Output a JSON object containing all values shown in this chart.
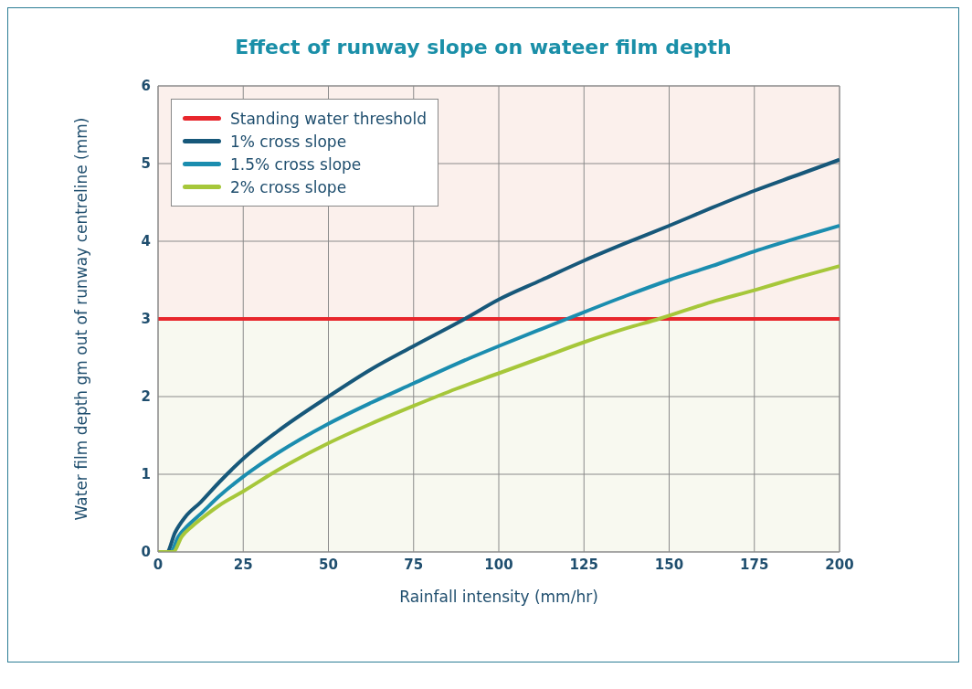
{
  "chart_data": {
    "type": "line",
    "title": "Effect of runway slope on wateer film depth",
    "xlabel": "Rainfall intensity (mm/hr)",
    "ylabel": "Water film depth gm out of runway centreline (mm)",
    "xlim": [
      0,
      200
    ],
    "xticks": [
      0,
      25,
      50,
      75,
      100,
      125,
      150,
      175,
      200
    ],
    "ylim": [
      0,
      6
    ],
    "yticks": [
      0,
      1,
      2,
      3,
      4,
      5,
      6
    ],
    "grid": true,
    "legend": "top left",
    "marker": "none",
    "line_style": "solid",
    "ref_lines": [
      {
        "axis": "y",
        "value": 3,
        "label": "Standing water threshold",
        "color": "#e8262c"
      }
    ],
    "bands": [
      {
        "axis": "y",
        "from": 3,
        "to": 6,
        "color": "#fbf0ec"
      },
      {
        "axis": "y",
        "from": 0,
        "to": 3,
        "color": "#f8f9f0"
      }
    ],
    "series": [
      {
        "name": "1% cross slope",
        "color": "#17587a",
        "x": [
          0,
          2.6,
          5,
          8,
          12.5,
          18,
          25,
          35,
          50,
          62.5,
          75,
          90,
          100,
          112.5,
          125,
          137.5,
          150,
          162.5,
          175,
          187.5,
          200
        ],
        "values": [
          0,
          0,
          0.25,
          0.45,
          0.64,
          0.9,
          1.2,
          1.55,
          2.0,
          2.35,
          2.65,
          3.0,
          3.25,
          3.5,
          3.75,
          3.98,
          4.2,
          4.43,
          4.65,
          4.85,
          5.05
        ]
      },
      {
        "name": "1.5% cross slope",
        "color": "#1b8daf",
        "x": [
          0,
          3.6,
          6,
          9,
          12.5,
          18,
          25,
          35,
          50,
          62.5,
          75,
          87.5,
          100,
          112.5,
          120,
          137.5,
          150,
          162.5,
          175,
          187.5,
          200
        ],
        "values": [
          0,
          0,
          0.2,
          0.35,
          0.49,
          0.72,
          0.97,
          1.27,
          1.65,
          1.92,
          2.17,
          2.42,
          2.65,
          2.87,
          3.0,
          3.3,
          3.5,
          3.68,
          3.87,
          4.04,
          4.2
        ]
      },
      {
        "name": "2% cross slope",
        "color": "#a6c73a",
        "x": [
          0,
          4.4,
          7,
          10,
          12.5,
          18,
          25,
          35,
          50,
          62.5,
          75,
          87.5,
          100,
          112.5,
          125,
          137.5,
          147,
          162.5,
          175,
          187.5,
          200
        ],
        "values": [
          0,
          0,
          0.2,
          0.33,
          0.42,
          0.6,
          0.78,
          1.05,
          1.4,
          1.65,
          1.88,
          2.1,
          2.3,
          2.5,
          2.7,
          2.88,
          3.0,
          3.22,
          3.37,
          3.53,
          3.68
        ]
      }
    ]
  }
}
